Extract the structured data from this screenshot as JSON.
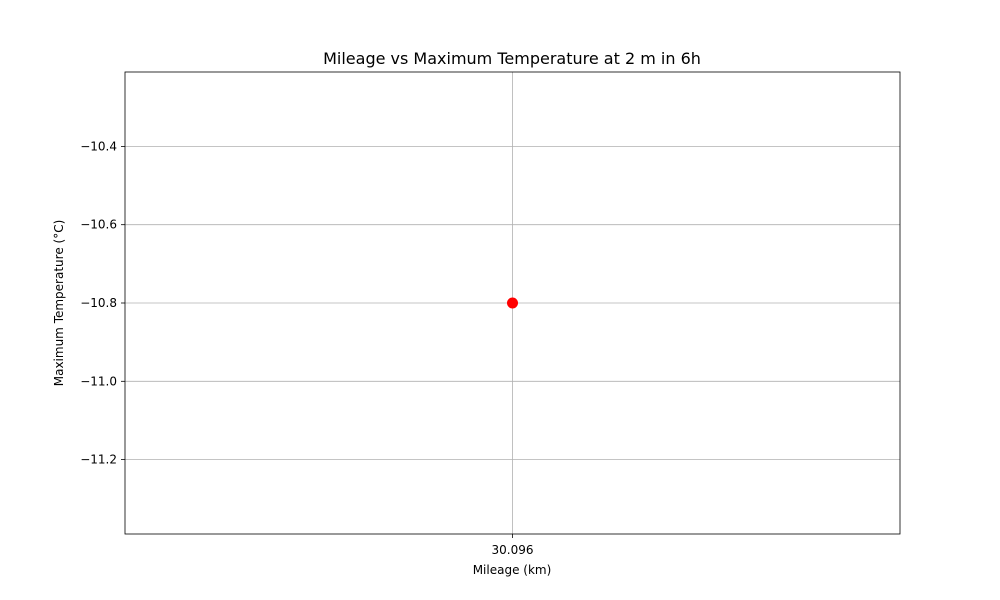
{
  "chart_data": {
    "type": "scatter",
    "title": "Mileage vs Maximum Temperature at 2 m in 6h",
    "xlabel": "Mileage (km)",
    "ylabel": "Maximum Temperature (°C)",
    "x_ticks": [
      30.096
    ],
    "x_tick_labels": [
      "30.096"
    ],
    "xlim": [
      30.046,
      30.146
    ],
    "y_ticks": [
      -11.2,
      -11.0,
      -10.8,
      -10.6,
      -10.4
    ],
    "y_tick_labels": [
      "−11.2",
      "−11.0",
      "−10.8",
      "−10.6",
      "−10.4"
    ],
    "ylim": [
      -11.39,
      -10.21
    ],
    "grid": true,
    "series": [
      {
        "color": "#ff0000",
        "points": [
          {
            "x": 30.096,
            "y": -10.8
          }
        ]
      }
    ]
  }
}
